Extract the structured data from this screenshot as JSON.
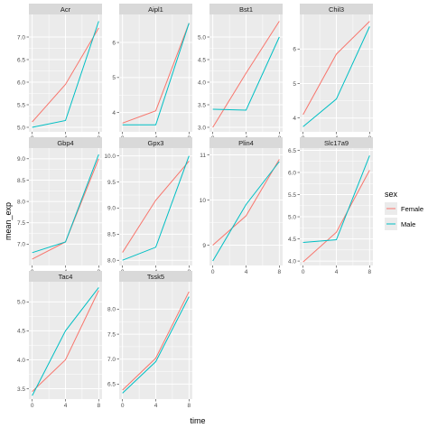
{
  "chart_data": {
    "type": "line",
    "facet": "gene",
    "xlabel": "time",
    "ylabel": "mean_exp",
    "x": [
      0,
      4,
      8
    ],
    "x_ticks": [
      0,
      4,
      8
    ],
    "legend": {
      "title": "sex",
      "placement": "right",
      "entries": [
        {
          "name": "Female",
          "color": "#F8766D"
        },
        {
          "name": "Male",
          "color": "#00BFC4"
        }
      ]
    },
    "colors": {
      "Female": "#F8766D",
      "Male": "#00BFC4",
      "panel_background": "#EBEBEB",
      "strip_background": "#D9D9D9",
      "grid": "#FFFFFF"
    },
    "grid": true,
    "panels": [
      {
        "gene": "Acr",
        "ylim": [
          4.9,
          7.5
        ],
        "y_ticks": [
          "5.0",
          "5.5",
          "6.0",
          "6.5",
          "7.0"
        ],
        "series": [
          {
            "name": "Female",
            "values": [
              5.12,
              5.95,
              7.2
            ]
          },
          {
            "name": "Male",
            "values": [
              5.0,
              5.15,
              7.35
            ]
          }
        ]
      },
      {
        "gene": "Aipl1",
        "ylim": [
          3.45,
          6.8
        ],
        "y_ticks": [
          "4",
          "5",
          "6"
        ],
        "series": [
          {
            "name": "Female",
            "values": [
              3.7,
              4.05,
              6.55
            ]
          },
          {
            "name": "Male",
            "values": [
              3.65,
              3.65,
              6.55
            ]
          }
        ]
      },
      {
        "gene": "Bst1",
        "ylim": [
          2.9,
          5.5
        ],
        "y_ticks": [
          "3.0",
          "3.5",
          "4.0",
          "4.5",
          "5.0"
        ],
        "series": [
          {
            "name": "Female",
            "values": [
              3.0,
              4.2,
              5.35
            ]
          },
          {
            "name": "Male",
            "values": [
              3.4,
              3.38,
              5.0
            ]
          }
        ]
      },
      {
        "gene": "Chil3",
        "ylim": [
          3.6,
          7.0
        ],
        "y_ticks": [
          "4",
          "5",
          "6"
        ],
        "series": [
          {
            "name": "Female",
            "values": [
              4.1,
              5.85,
              6.8
            ]
          },
          {
            "name": "Male",
            "values": [
              3.75,
              4.55,
              6.65
            ]
          }
        ]
      },
      {
        "gene": "Gbp4",
        "ylim": [
          6.5,
          9.25
        ],
        "y_ticks": [
          "7.0",
          "7.5",
          "8.0",
          "8.5",
          "9.0"
        ],
        "series": [
          {
            "name": "Female",
            "values": [
              6.65,
              7.05,
              9.0
            ]
          },
          {
            "name": "Male",
            "values": [
              6.8,
              7.05,
              9.1
            ]
          }
        ]
      },
      {
        "gene": "Gpx3",
        "ylim": [
          7.9,
          10.15
        ],
        "y_ticks": [
          "8.0",
          "8.5",
          "9.0",
          "9.5",
          "10.0"
        ],
        "series": [
          {
            "name": "Female",
            "values": [
              8.15,
              9.15,
              9.9
            ]
          },
          {
            "name": "Male",
            "values": [
              8.0,
              8.25,
              10.0
            ]
          }
        ]
      },
      {
        "gene": "Plin4",
        "ylim": [
          8.55,
          11.15
        ],
        "y_ticks": [
          "9",
          "10",
          "11"
        ],
        "series": [
          {
            "name": "Female",
            "values": [
              9.0,
              9.65,
              10.9
            ]
          },
          {
            "name": "Male",
            "values": [
              8.65,
              9.9,
              10.85
            ]
          }
        ]
      },
      {
        "gene": "Slc17a9",
        "ylim": [
          3.9,
          6.55
        ],
        "y_ticks": [
          "4.0",
          "4.5",
          "5.0",
          "5.5",
          "6.0",
          "6.5"
        ],
        "series": [
          {
            "name": "Female",
            "values": [
              3.98,
              4.65,
              6.05
            ]
          },
          {
            "name": "Male",
            "values": [
              4.42,
              4.48,
              6.38
            ]
          }
        ]
      },
      {
        "gene": "Tac4",
        "ylim": [
          3.32,
          5.35
        ],
        "y_ticks": [
          "3.5",
          "4.0",
          "4.5",
          "5.0"
        ],
        "series": [
          {
            "name": "Female",
            "values": [
              3.45,
              4.0,
              5.2
            ]
          },
          {
            "name": "Male",
            "values": [
              3.38,
              4.5,
              5.25
            ]
          }
        ]
      },
      {
        "gene": "Tssk5",
        "ylim": [
          6.2,
          8.55
        ],
        "y_ticks": [
          "6.5",
          "7.0",
          "7.5",
          "8.0"
        ],
        "series": [
          {
            "name": "Female",
            "values": [
              6.38,
              7.02,
              8.35
            ]
          },
          {
            "name": "Male",
            "values": [
              6.32,
              6.95,
              8.25
            ]
          }
        ]
      }
    ]
  }
}
